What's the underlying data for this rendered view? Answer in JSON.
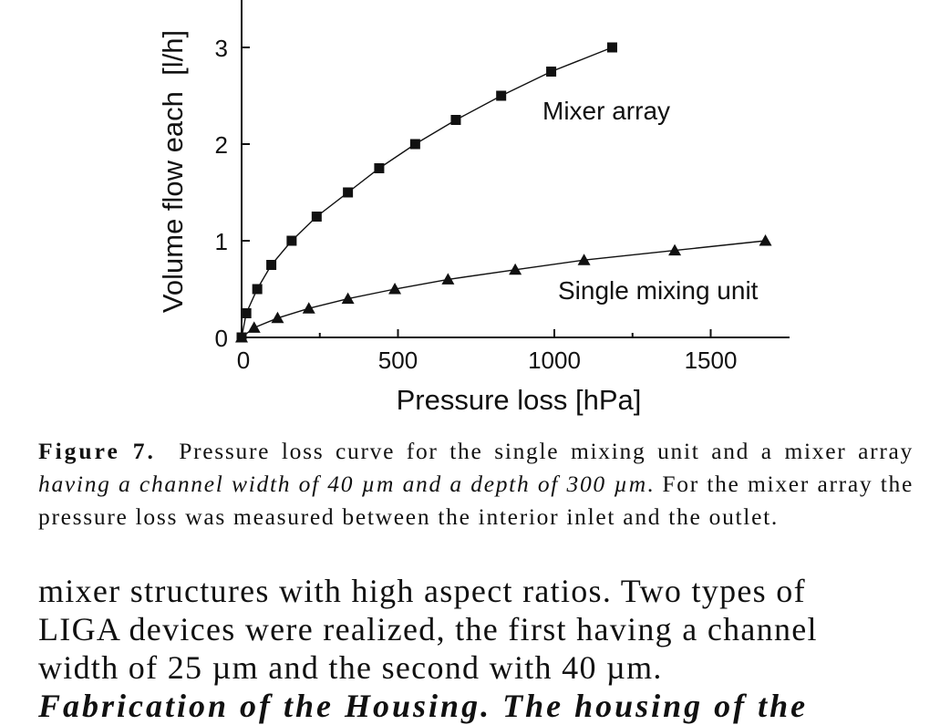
{
  "chart_data": {
    "type": "line",
    "xlabel": "Pressure loss [hPa]",
    "ylabel": "Volume flow each  [l/h]",
    "xlim": [
      0,
      1750
    ],
    "ylim": [
      0,
      3.5
    ],
    "x_ticks": [
      "0",
      "500",
      "1000",
      "1500"
    ],
    "y_ticks": [
      "0",
      "1",
      "2",
      "3"
    ],
    "grid": false,
    "series": [
      {
        "name": "Mixer array",
        "marker": "square",
        "x": [
          0,
          15,
          50,
          95,
          160,
          240,
          340,
          440,
          555,
          685,
          830,
          990,
          1185
        ],
        "y": [
          0,
          0.25,
          0.5,
          0.75,
          1.0,
          1.25,
          1.5,
          1.75,
          2.0,
          2.25,
          2.5,
          2.75,
          3.0
        ]
      },
      {
        "name": "Single mixing unit",
        "marker": "triangle",
        "x": [
          0,
          40,
          115,
          215,
          340,
          490,
          660,
          875,
          1095,
          1385,
          1675
        ],
        "y": [
          0,
          0.1,
          0.2,
          0.3,
          0.4,
          0.5,
          0.6,
          0.7,
          0.8,
          0.9,
          1.0
        ]
      }
    ]
  },
  "caption": {
    "label": "Figure 7.",
    "part1": "Pressure loss curve for the single mixing unit and a mixer array",
    "part2_italic": "having a channel width of 40 µm and a depth of 300 µm",
    "part3": ". For the mixer array the pressure loss was measured between the interior inlet and the outlet."
  },
  "body_text": {
    "line1": "mixer structures with high aspect ratios. Two types of",
    "line2": "LIGA devices were realized, the first having a channel",
    "line3": "width of 25 µm and the second with 40 µm.",
    "line4": "Fabrication of the Housing. The housing of the"
  }
}
